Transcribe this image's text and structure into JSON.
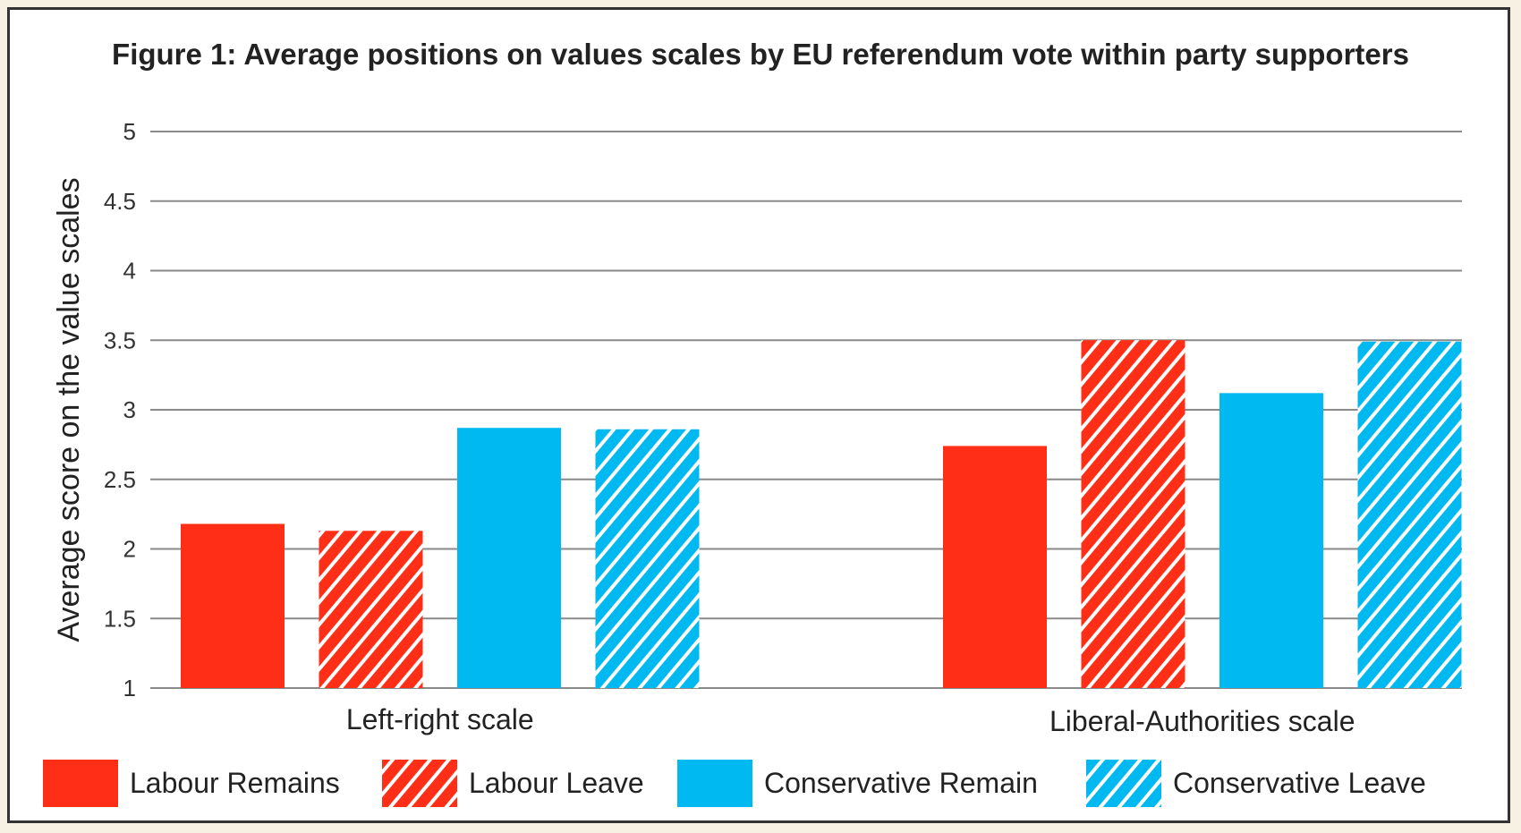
{
  "chart_data": {
    "type": "bar",
    "title": "Figure 1: Average positions on values scales by EU referendum vote within party supporters",
    "xlabel": "",
    "ylabel": "Average score on the value scales",
    "ylim": [
      1,
      5
    ],
    "yticks": [
      "1",
      "1.5",
      "2",
      "2.5",
      "3",
      "3.5",
      "4",
      "4.5",
      "5"
    ],
    "grid": true,
    "legend_position": "bottom",
    "categories": [
      "Left-right scale",
      "Liberal-Authorities scale"
    ],
    "series": [
      {
        "name": "Labour Remains",
        "values": [
          2.18,
          2.74
        ],
        "color": "#ff2e17",
        "hatched": false
      },
      {
        "name": "Labour Leave",
        "values": [
          2.13,
          3.5
        ],
        "color": "#ff2e17",
        "hatched": true
      },
      {
        "name": "Conservative Remain",
        "values": [
          2.87,
          3.12
        ],
        "color": "#00b9f0",
        "hatched": false
      },
      {
        "name": "Conservative Leave",
        "values": [
          2.86,
          3.49
        ],
        "color": "#00b9f0",
        "hatched": true
      }
    ]
  }
}
